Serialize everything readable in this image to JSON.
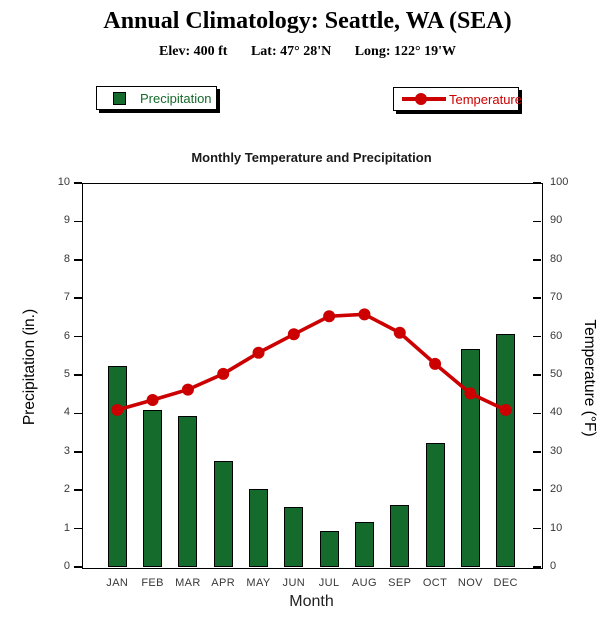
{
  "page": {
    "title": "Annual Climatology: Seattle, WA (SEA)",
    "station_info": {
      "elevation": "Elev: 400 ft",
      "latitude": "Lat: 47° 28'N",
      "longitude": "Long: 122° 19'W"
    }
  },
  "legend": {
    "precipitation_label": "Precipitation",
    "temperature_label": "Temperature"
  },
  "colors": {
    "precipitation_green": "#156B2B",
    "temperature_red": "#CC0000",
    "tick_label_gray": "#383838"
  },
  "chart_data": {
    "type": "bar+line",
    "title": "Monthly Temperature and Precipitation",
    "categories": [
      "JAN",
      "FEB",
      "MAR",
      "APR",
      "MAY",
      "JUN",
      "JUL",
      "AUG",
      "SEP",
      "OCT",
      "NOV",
      "DEC"
    ],
    "series": [
      {
        "name": "Precipitation",
        "type": "bar",
        "axis": "left",
        "unit": "in.",
        "color": "#156B2B",
        "values": [
          5.24,
          4.09,
          3.92,
          2.75,
          2.03,
          1.55,
          0.93,
          1.16,
          1.61,
          3.24,
          5.67,
          6.06
        ]
      },
      {
        "name": "Temperature",
        "type": "line",
        "axis": "right",
        "unit": "°F",
        "color": "#CC0000",
        "marker": "circle",
        "values": [
          40.9,
          43.5,
          46.2,
          50.3,
          55.8,
          60.6,
          65.3,
          65.8,
          61.0,
          52.9,
          45.2,
          40.9
        ]
      }
    ],
    "xlabel": "Month",
    "left_axis": {
      "label": "Precipitation (in.)",
      "min": 0,
      "max": 10,
      "tick_step": 1
    },
    "right_axis": {
      "label": "Temperature (°F)",
      "min": 0,
      "max": 100,
      "tick_step": 10
    },
    "grid": false,
    "legend_position": "top"
  }
}
